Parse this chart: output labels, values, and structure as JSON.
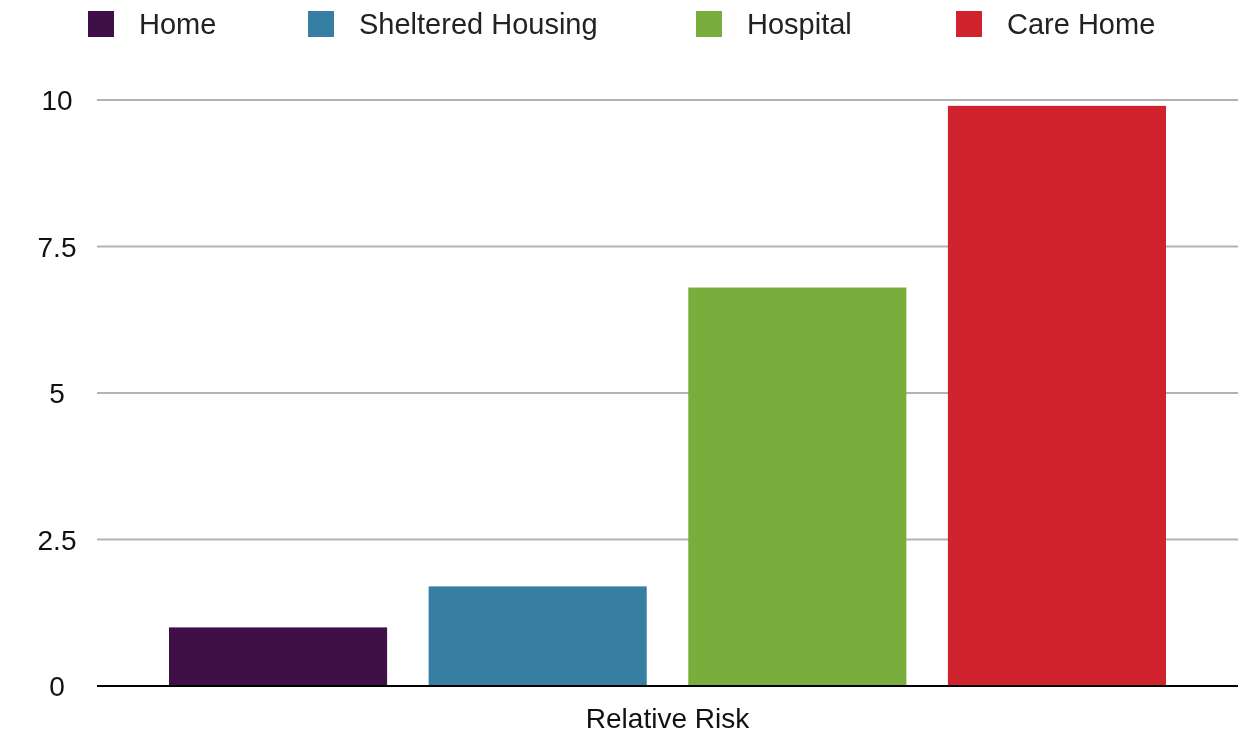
{
  "chart_data": {
    "type": "bar",
    "categories": [
      "Relative Risk"
    ],
    "series": [
      {
        "name": "Home",
        "color": "#3f0f48",
        "values": [
          1.0
        ]
      },
      {
        "name": "Sheltered Housing",
        "color": "#377fa2",
        "values": [
          1.7
        ]
      },
      {
        "name": "Hospital",
        "color": "#7aae3c",
        "values": [
          6.8
        ]
      },
      {
        "name": "Care Home",
        "color": "#d0232d",
        "values": [
          9.9
        ]
      }
    ],
    "ylim": [
      0,
      10
    ],
    "yticks": [
      0,
      2.5,
      5,
      7.5,
      10
    ],
    "grid": "y",
    "legend": "top"
  }
}
